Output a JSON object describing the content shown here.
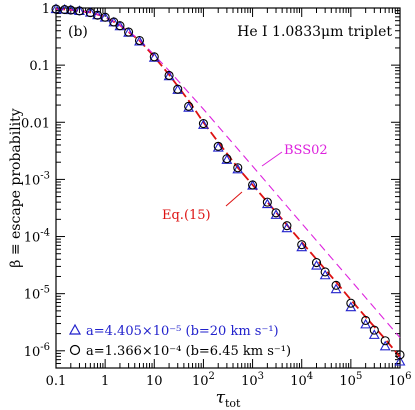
{
  "chart_data": {
    "type": "scatter",
    "panel_label": "(b)",
    "title": "He I 1.0833μm triplet",
    "xlabel": "τ",
    "xlabel_sub": "tot",
    "ylabel": "β ≡ escape probability",
    "xscale": "log",
    "yscale": "log",
    "xlim": [
      0.1,
      1000000
    ],
    "ylim": [
      5e-07,
      1
    ],
    "x_ticks": [
      {
        "v": 0.1,
        "label": "0.1"
      },
      {
        "v": 1,
        "label": "1"
      },
      {
        "v": 10,
        "label": "10"
      },
      {
        "v": 100,
        "base": "10",
        "exp": "2"
      },
      {
        "v": 1000,
        "base": "10",
        "exp": "3"
      },
      {
        "v": 10000,
        "base": "10",
        "exp": "4"
      },
      {
        "v": 100000,
        "base": "10",
        "exp": "5"
      },
      {
        "v": 1000000,
        "base": "10",
        "exp": "6"
      }
    ],
    "y_ticks": [
      {
        "v": 1,
        "label": "1"
      },
      {
        "v": 0.1,
        "label": "0.1"
      },
      {
        "v": 0.01,
        "label": "0.01"
      },
      {
        "v": 0.001,
        "base": "10",
        "exp": "-3"
      },
      {
        "v": 0.0001,
        "base": "10",
        "exp": "-4"
      },
      {
        "v": 1e-05,
        "base": "10",
        "exp": "-5"
      },
      {
        "v": 1e-06,
        "base": "10",
        "exp": "-6"
      }
    ],
    "series": [
      {
        "name": "a=4.405×10⁻⁵ (b=20 km s⁻¹)",
        "marker": "triangle",
        "color": "#2222cc",
        "x": [
          0.1,
          0.15,
          0.2,
          0.3,
          0.5,
          0.7,
          1,
          1.5,
          2,
          3,
          5,
          10,
          20,
          30,
          50,
          100,
          200,
          300,
          500,
          1000,
          2000,
          3000,
          5000,
          10000,
          20000,
          30000,
          50000,
          100000,
          200000,
          300000,
          500000,
          1000000
        ],
        "y": [
          0.96,
          0.94,
          0.92,
          0.89,
          0.83,
          0.75,
          0.68,
          0.56,
          0.48,
          0.37,
          0.26,
          0.135,
          0.064,
          0.037,
          0.018,
          0.009,
          0.0036,
          0.0022,
          0.0015,
          0.00078,
          0.00037,
          0.00024,
          0.00014,
          6.5e-05,
          3.1e-05,
          2.1e-05,
          1.2e-05,
          5.8e-06,
          2.9e-06,
          1.9e-06,
          1.2e-06,
          6.5e-07
        ]
      },
      {
        "name": "a=1.366×10⁻⁴ (b=6.45 km s⁻¹)",
        "marker": "circle",
        "color": "#000000",
        "x": [
          0.1,
          0.15,
          0.2,
          0.3,
          0.5,
          0.7,
          1,
          1.5,
          2,
          3,
          5,
          10,
          20,
          30,
          50,
          100,
          200,
          300,
          500,
          1000,
          2000,
          3000,
          5000,
          10000,
          20000,
          30000,
          50000,
          100000,
          200000,
          300000,
          500000,
          1000000
        ],
        "y": [
          0.96,
          0.94,
          0.92,
          0.89,
          0.83,
          0.75,
          0.69,
          0.57,
          0.49,
          0.38,
          0.27,
          0.14,
          0.066,
          0.038,
          0.019,
          0.0095,
          0.0038,
          0.0023,
          0.0016,
          0.0008,
          0.0004,
          0.00026,
          0.000155,
          7.2e-05,
          3.5e-05,
          2.4e-05,
          1.4e-05,
          6.8e-06,
          3.4e-06,
          2.3e-06,
          1.5e-06,
          8.5e-07
        ]
      }
    ],
    "lines": [
      {
        "name": "Eq.(15)",
        "style": "dashed",
        "color": "#dd1111",
        "x": [
          0.1,
          0.2,
          0.5,
          1,
          2,
          5,
          10,
          20,
          50,
          100,
          200,
          500,
          1000,
          2000,
          5000,
          10000,
          20000,
          50000,
          100000,
          200000,
          500000,
          1000000
        ],
        "y": [
          0.96,
          0.93,
          0.84,
          0.7,
          0.5,
          0.27,
          0.14,
          0.068,
          0.024,
          0.01,
          0.0045,
          0.0016,
          0.0008,
          0.0004,
          0.00016,
          8e-05,
          4e-05,
          1.6e-05,
          7.8e-06,
          3.9e-06,
          1.6e-06,
          7.8e-07
        ]
      },
      {
        "name": "BSS02",
        "style": "dashed",
        "color": "#dd22dd",
        "x": [
          0.1,
          0.2,
          0.5,
          1,
          2,
          5,
          10,
          20,
          50,
          100,
          200,
          500,
          1000,
          2000,
          5000,
          10000,
          20000,
          50000,
          100000,
          200000,
          500000,
          1000000
        ],
        "y": [
          0.96,
          0.93,
          0.84,
          0.7,
          0.5,
          0.28,
          0.15,
          0.08,
          0.033,
          0.017,
          0.0085,
          0.0034,
          0.0017,
          0.00085,
          0.00034,
          0.00017,
          8.5e-05,
          3.4e-05,
          1.7e-05,
          8.5e-06,
          3.4e-06,
          1.7e-06
        ]
      }
    ],
    "legend_placement": "bottom-left",
    "grid": false
  }
}
